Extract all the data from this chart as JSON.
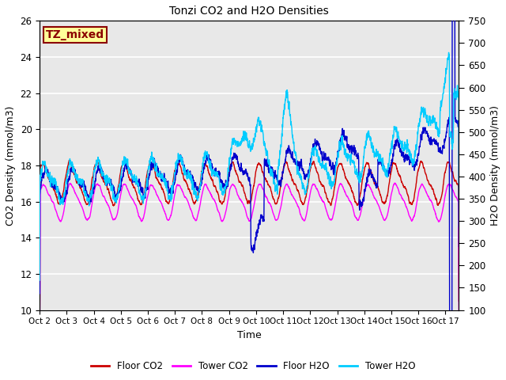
{
  "title": "Tonzi CO2 and H2O Densities",
  "xlabel": "Time",
  "ylabel_left": "CO2 Density (mmol/m3)",
  "ylabel_right": "H2O Density (mmol/m3)",
  "annotation": "TZ_mixed",
  "annotation_color": "#8B0000",
  "annotation_bg": "#FFFF99",
  "annotation_border": "#8B0000",
  "xlim_days": [
    0,
    15.5
  ],
  "ylim_left": [
    10,
    26
  ],
  "ylim_right": [
    100,
    750
  ],
  "yticks_left": [
    10,
    12,
    14,
    16,
    18,
    20,
    22,
    24,
    26
  ],
  "yticks_right": [
    100,
    150,
    200,
    250,
    300,
    350,
    400,
    450,
    500,
    550,
    600,
    650,
    700,
    750
  ],
  "xtick_labels": [
    "Oct 2",
    "Oct 3",
    "Oct 4",
    "Oct 5",
    "Oct 6",
    "Oct 7",
    "Oct 8",
    "Oct 9",
    "Oct 10",
    "Oct 11",
    "Oct 12",
    "Oct 13",
    "Oct 14",
    "Oct 15",
    "Oct 16",
    "Oct 17"
  ],
  "xtick_positions": [
    0,
    1,
    2,
    3,
    4,
    5,
    6,
    7,
    8,
    9,
    10,
    11,
    12,
    13,
    14,
    15
  ],
  "colors": {
    "floor_co2": "#CC0000",
    "tower_co2": "#FF00FF",
    "floor_h2o": "#0000CC",
    "tower_h2o": "#00CCFF"
  },
  "legend_labels": [
    "Floor CO2",
    "Tower CO2",
    "Floor H2O",
    "Tower H2O"
  ],
  "background_color": "#E8E8E8",
  "grid_color": "#FFFFFF",
  "linewidth": 1.0,
  "seed": 42
}
